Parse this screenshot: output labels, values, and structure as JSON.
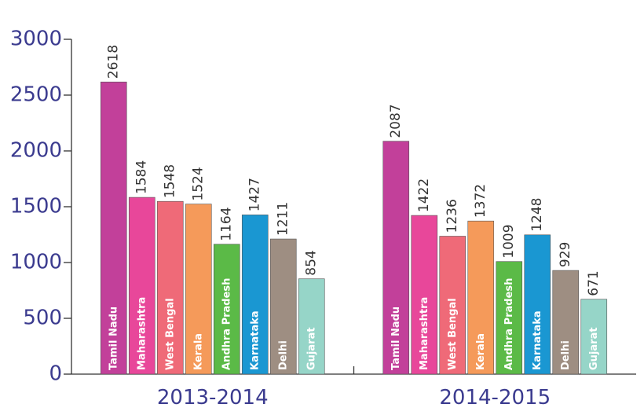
{
  "chart_data": {
    "type": "bar",
    "categories": [
      "2013-2014",
      "2014-2015"
    ],
    "series": [
      {
        "name": "Tamil Nadu",
        "color": "#c2409a",
        "values": [
          2618,
          2087
        ]
      },
      {
        "name": "Maharashtra",
        "color": "#e8479a",
        "values": [
          1584,
          1422
        ]
      },
      {
        "name": "West Bengal",
        "color": "#ef6a78",
        "values": [
          1548,
          1236
        ]
      },
      {
        "name": "Kerala",
        "color": "#f59a5a",
        "values": [
          1524,
          1372
        ]
      },
      {
        "name": "Andhra Pradesh",
        "color": "#5bba47",
        "values": [
          1164,
          1009
        ]
      },
      {
        "name": "Karnataka",
        "color": "#1a97d2",
        "values": [
          1427,
          1248
        ]
      },
      {
        "name": "Delhi",
        "color": "#9e8e82",
        "values": [
          1211,
          929
        ]
      },
      {
        "name": "Gujarat",
        "color": "#96d5c8",
        "values": [
          854,
          671
        ]
      }
    ],
    "ylim": [
      0,
      3000
    ],
    "yticks": [
      0,
      500,
      1000,
      1500,
      2000,
      2500,
      3000
    ]
  }
}
